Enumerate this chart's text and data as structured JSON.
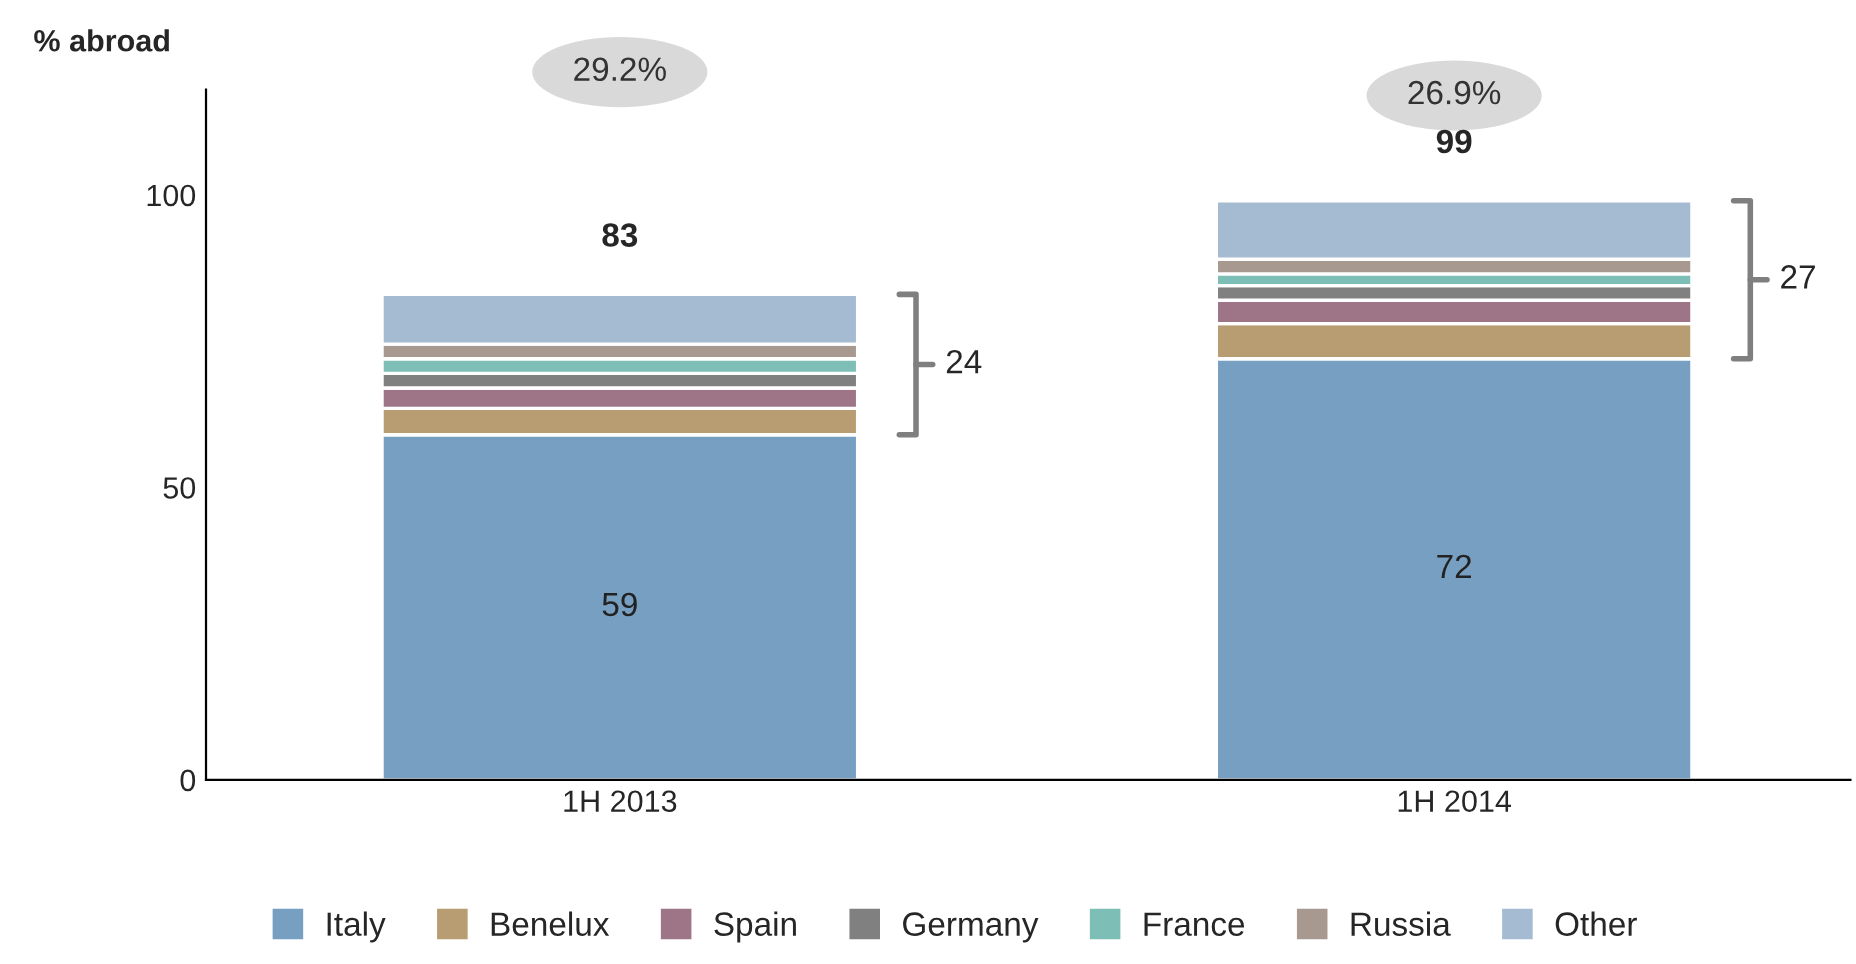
{
  "chart_data": {
    "type": "bar",
    "stacked": true,
    "ylabel": "% abroad",
    "categories": [
      "1H 2013",
      "1H 2014"
    ],
    "series": [
      {
        "name": "Italy",
        "color": "#779fc2",
        "values": [
          59,
          72
        ],
        "value_labels": [
          "59",
          "72"
        ]
      },
      {
        "name": "Benelux",
        "color": "#b89d72",
        "values": [
          4.5,
          6
        ]
      },
      {
        "name": "Spain",
        "color": "#9e7587",
        "values": [
          3.5,
          4
        ]
      },
      {
        "name": "Germany",
        "color": "#808080",
        "values": [
          2.5,
          2.5
        ]
      },
      {
        "name": "France",
        "color": "#7dbfb7",
        "values": [
          2.5,
          2
        ]
      },
      {
        "name": "Russia",
        "color": "#a89990",
        "values": [
          2.5,
          2.5
        ]
      },
      {
        "name": "Other",
        "color": "#a5bbd1",
        "values": [
          8.5,
          10
        ]
      }
    ],
    "totals": [
      "83",
      "99"
    ],
    "annotations": [
      "29.2%",
      "26.9%",
      "24",
      "27"
    ],
    "ylim": [
      0,
      118
    ],
    "yticks": [
      0,
      50,
      100
    ],
    "grid": false,
    "legend": "bottom"
  }
}
